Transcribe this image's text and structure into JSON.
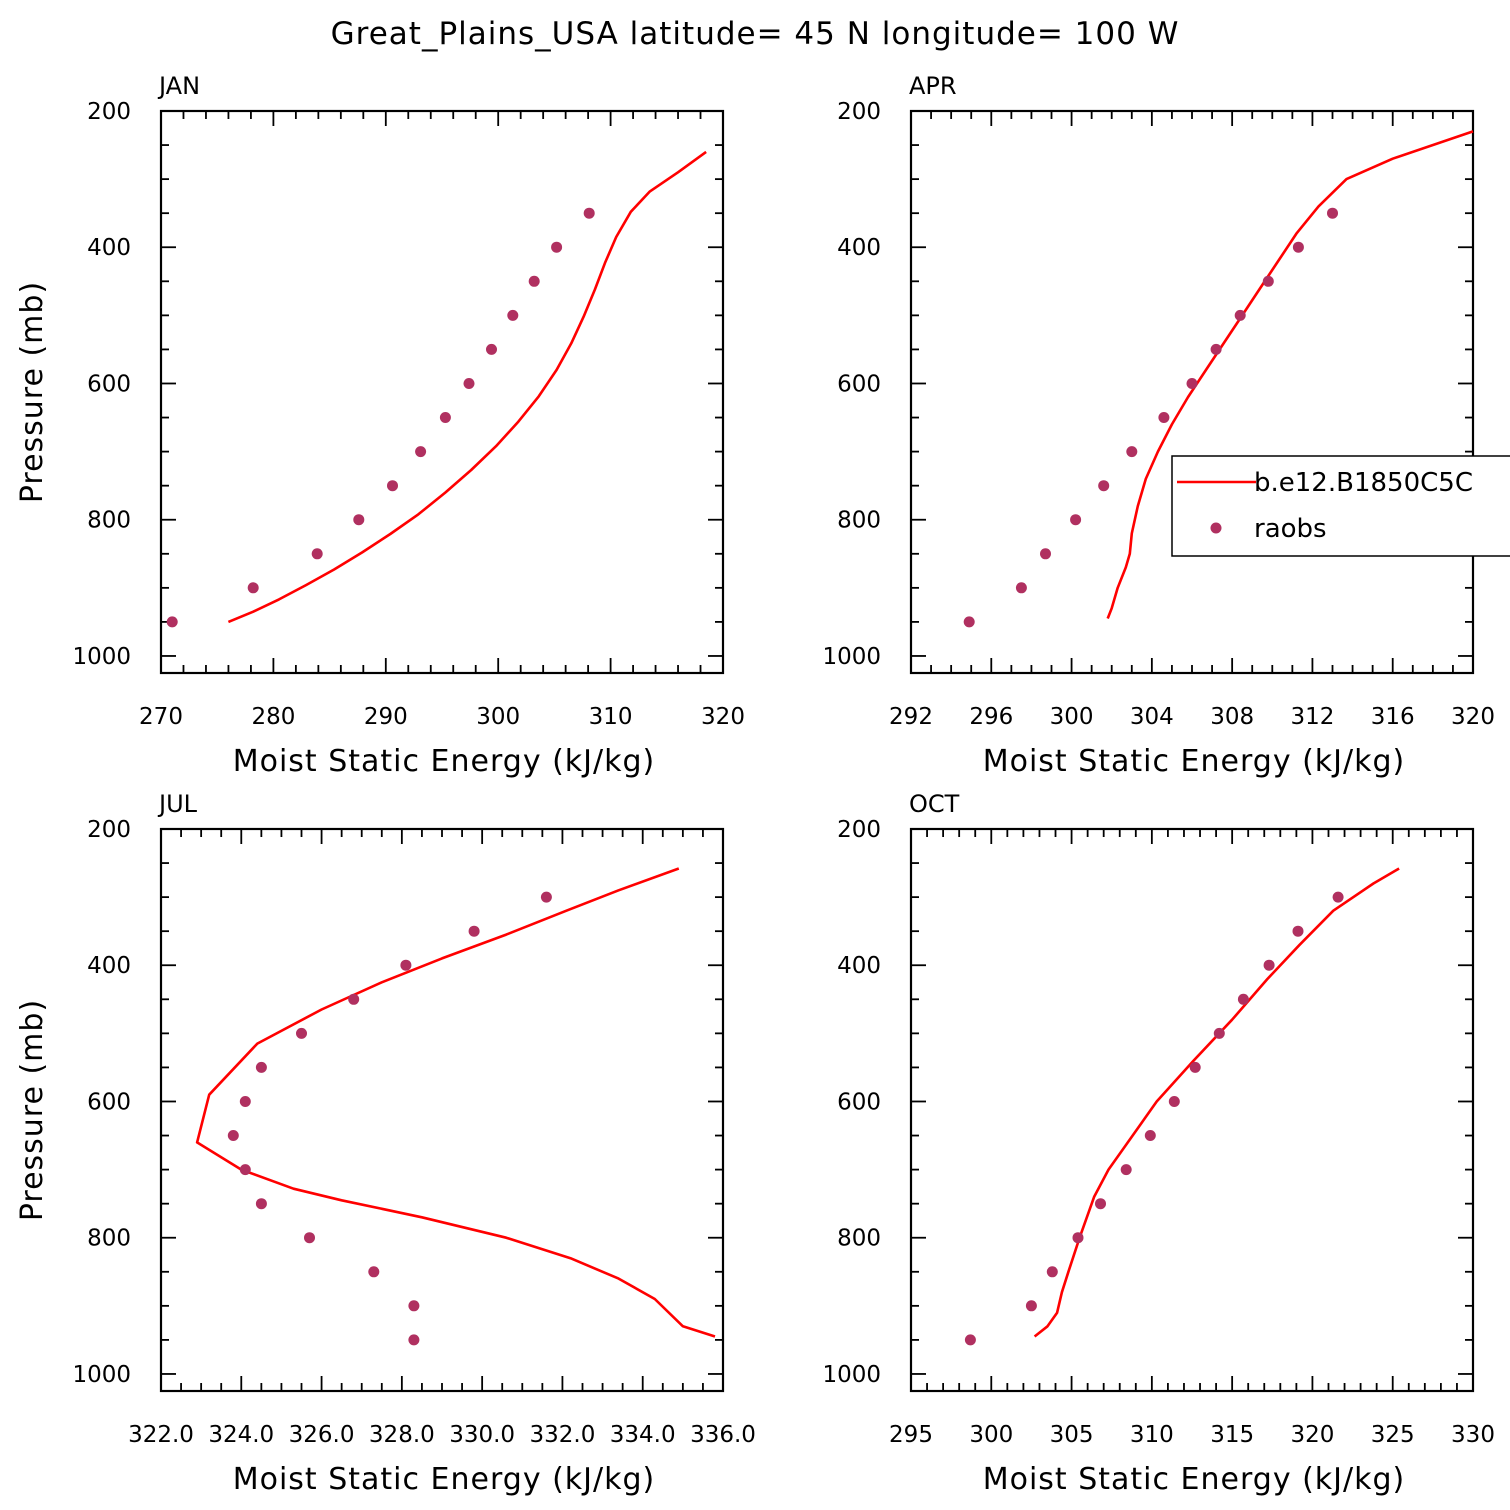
{
  "title": "Great_Plains_USA  latitude= 45 N longitude= 100 W",
  "colors": {
    "model": "#ff0000",
    "obs": "#b03060",
    "axes": "#000000"
  },
  "legend": {
    "entries": [
      {
        "label": "b.e12.B1850C5C",
        "kind": "line",
        "color": "#ff0000"
      },
      {
        "label": "raobs",
        "kind": "marker",
        "color": "#b03060"
      }
    ],
    "placement": "inside APR panel, right"
  },
  "chart_data": [
    {
      "type": "line",
      "panel": "JAN",
      "xlabel": "Moist Static Energy (kJ/kg)",
      "ylabel": "Pressure (mb)",
      "xlim": [
        270,
        320
      ],
      "ylim": [
        1000,
        200
      ],
      "y_reversed": true,
      "xticks": [
        270,
        280,
        290,
        300,
        310,
        320
      ],
      "xtick_labels": [
        "270",
        "280",
        "290",
        "300",
        "310",
        "320"
      ],
      "xminor": 2,
      "yticks": [
        200,
        400,
        600,
        800,
        1000
      ],
      "ytick_labels": [
        "200",
        "400",
        "600",
        "800",
        "1000"
      ],
      "yminor": 50,
      "grid": false,
      "series": [
        {
          "name": "b.e12.B1850C5C",
          "kind": "line",
          "points": [
            [
              276.0,
              950
            ],
            [
              278.2,
              935
            ],
            [
              280.5,
              917
            ],
            [
              282.9,
              896
            ],
            [
              285.4,
              873
            ],
            [
              287.9,
              848
            ],
            [
              290.4,
              821
            ],
            [
              292.9,
              792
            ],
            [
              295.3,
              760
            ],
            [
              297.6,
              727
            ],
            [
              299.8,
              692
            ],
            [
              301.8,
              656
            ],
            [
              303.6,
              619
            ],
            [
              305.2,
              580
            ],
            [
              306.5,
              541
            ],
            [
              307.6,
              502
            ],
            [
              308.6,
              462
            ],
            [
              309.5,
              423
            ],
            [
              310.5,
              385
            ],
            [
              311.8,
              348
            ],
            [
              313.5,
              318
            ],
            [
              316.0,
              290
            ],
            [
              318.5,
              260
            ]
          ]
        },
        {
          "name": "raobs",
          "kind": "scatter",
          "points": [
            [
              271.0,
              950
            ],
            [
              278.2,
              900
            ],
            [
              283.9,
              850
            ],
            [
              287.6,
              800
            ],
            [
              290.6,
              750
            ],
            [
              293.1,
              700
            ],
            [
              295.3,
              650
            ],
            [
              297.4,
              600
            ],
            [
              299.4,
              550
            ],
            [
              301.3,
              500
            ],
            [
              303.2,
              450
            ],
            [
              305.2,
              400
            ],
            [
              308.1,
              350
            ]
          ]
        }
      ]
    },
    {
      "type": "line",
      "panel": "APR",
      "xlabel": "Moist Static Energy (kJ/kg)",
      "ylabel": "",
      "xlim": [
        292,
        320
      ],
      "ylim": [
        1000,
        200
      ],
      "y_reversed": true,
      "xticks": [
        292,
        296,
        300,
        304,
        308,
        312,
        316,
        320
      ],
      "xtick_labels": [
        "292",
        "296",
        "300",
        "304",
        "308",
        "312",
        "316",
        "320"
      ],
      "xminor": 1,
      "yticks": [
        200,
        400,
        600,
        800,
        1000
      ],
      "ytick_labels": [
        "200",
        "400",
        "600",
        "800",
        "1000"
      ],
      "yminor": 50,
      "grid": false,
      "series": [
        {
          "name": "b.e12.B1850C5C",
          "kind": "line",
          "points": [
            [
              301.8,
              945
            ],
            [
              302.0,
              930
            ],
            [
              302.3,
              900
            ],
            [
              302.7,
              870
            ],
            [
              302.9,
              850
            ],
            [
              303.0,
              820
            ],
            [
              303.3,
              780
            ],
            [
              303.7,
              740
            ],
            [
              304.3,
              700
            ],
            [
              305.0,
              660
            ],
            [
              305.8,
              620
            ],
            [
              306.7,
              580
            ],
            [
              307.6,
              540
            ],
            [
              308.5,
              500
            ],
            [
              309.4,
              460
            ],
            [
              310.3,
              420
            ],
            [
              311.2,
              380
            ],
            [
              312.3,
              340
            ],
            [
              313.7,
              300
            ],
            [
              316.0,
              270
            ],
            [
              320.0,
              230
            ]
          ]
        },
        {
          "name": "raobs",
          "kind": "scatter",
          "points": [
            [
              294.9,
              950
            ],
            [
              297.5,
              900
            ],
            [
              298.7,
              850
            ],
            [
              300.2,
              800
            ],
            [
              301.6,
              750
            ],
            [
              303.0,
              700
            ],
            [
              304.6,
              650
            ],
            [
              306.0,
              600
            ],
            [
              307.2,
              550
            ],
            [
              308.4,
              500
            ],
            [
              309.8,
              450
            ],
            [
              311.3,
              400
            ],
            [
              313.0,
              350
            ]
          ]
        }
      ]
    },
    {
      "type": "line",
      "panel": "JUL",
      "xlabel": "Moist Static Energy (kJ/kg)",
      "ylabel": "Pressure (mb)",
      "xlim": [
        322.0,
        336.0
      ],
      "ylim": [
        1000,
        200
      ],
      "y_reversed": true,
      "xticks": [
        322.0,
        324.0,
        326.0,
        328.0,
        330.0,
        332.0,
        334.0,
        336.0
      ],
      "xtick_labels": [
        "322.0",
        "324.0",
        "326.0",
        "328.0",
        "330.0",
        "332.0",
        "334.0",
        "336.0"
      ],
      "xminor": 0.5,
      "yticks": [
        200,
        400,
        600,
        800,
        1000
      ],
      "ytick_labels": [
        "200",
        "400",
        "600",
        "800",
        "1000"
      ],
      "yminor": 50,
      "grid": false,
      "series": [
        {
          "name": "b.e12.B1850C5C",
          "kind": "line",
          "points": [
            [
              335.8,
              945
            ],
            [
              335.0,
              930
            ],
            [
              334.3,
              890
            ],
            [
              333.4,
              860
            ],
            [
              332.2,
              830
            ],
            [
              330.6,
              800
            ],
            [
              328.5,
              770
            ],
            [
              326.5,
              745
            ],
            [
              325.3,
              728
            ],
            [
              324.0,
              700
            ],
            [
              322.9,
              660
            ],
            [
              323.2,
              590
            ],
            [
              324.4,
              515
            ],
            [
              326.0,
              465
            ],
            [
              327.5,
              425
            ],
            [
              329.0,
              390
            ],
            [
              330.6,
              355
            ],
            [
              332.1,
              320
            ],
            [
              333.4,
              290
            ],
            [
              334.9,
              258
            ]
          ]
        },
        {
          "name": "raobs",
          "kind": "scatter",
          "points": [
            [
              328.3,
              950
            ],
            [
              328.3,
              900
            ],
            [
              327.3,
              850
            ],
            [
              325.7,
              800
            ],
            [
              324.5,
              750
            ],
            [
              324.1,
              700
            ],
            [
              323.8,
              650
            ],
            [
              324.1,
              600
            ],
            [
              324.5,
              550
            ],
            [
              325.5,
              500
            ],
            [
              326.8,
              450
            ],
            [
              328.1,
              400
            ],
            [
              329.8,
              350
            ],
            [
              331.6,
              300
            ]
          ]
        }
      ]
    },
    {
      "type": "line",
      "panel": "OCT",
      "xlabel": "Moist Static Energy (kJ/kg)",
      "ylabel": "",
      "xlim": [
        295,
        330
      ],
      "ylim": [
        1000,
        200
      ],
      "y_reversed": true,
      "xticks": [
        295,
        300,
        305,
        310,
        315,
        320,
        325,
        330
      ],
      "xtick_labels": [
        "295",
        "300",
        "305",
        "310",
        "315",
        "320",
        "325",
        "330"
      ],
      "xminor": 1,
      "yticks": [
        200,
        400,
        600,
        800,
        1000
      ],
      "ytick_labels": [
        "200",
        "400",
        "600",
        "800",
        "1000"
      ],
      "yminor": 50,
      "grid": false,
      "series": [
        {
          "name": "b.e12.B1850C5C",
          "kind": "line",
          "points": [
            [
              302.7,
              945
            ],
            [
              303.5,
              930
            ],
            [
              304.1,
              910
            ],
            [
              304.4,
              880
            ],
            [
              304.8,
              850
            ],
            [
              305.5,
              800
            ],
            [
              306.4,
              740
            ],
            [
              307.3,
              700
            ],
            [
              308.5,
              660
            ],
            [
              310.3,
              600
            ],
            [
              312.6,
              540
            ],
            [
              315.0,
              480
            ],
            [
              317.2,
              420
            ],
            [
              319.2,
              370
            ],
            [
              321.3,
              320
            ],
            [
              323.8,
              280
            ],
            [
              325.4,
              258
            ]
          ]
        },
        {
          "name": "raobs",
          "kind": "scatter",
          "points": [
            [
              298.7,
              950
            ],
            [
              302.5,
              900
            ],
            [
              303.8,
              850
            ],
            [
              305.4,
              800
            ],
            [
              306.8,
              750
            ],
            [
              308.4,
              700
            ],
            [
              309.9,
              650
            ],
            [
              311.4,
              600
            ],
            [
              312.7,
              550
            ],
            [
              314.2,
              500
            ],
            [
              315.7,
              450
            ],
            [
              317.3,
              400
            ],
            [
              319.1,
              350
            ],
            [
              321.6,
              300
            ]
          ]
        }
      ]
    }
  ]
}
